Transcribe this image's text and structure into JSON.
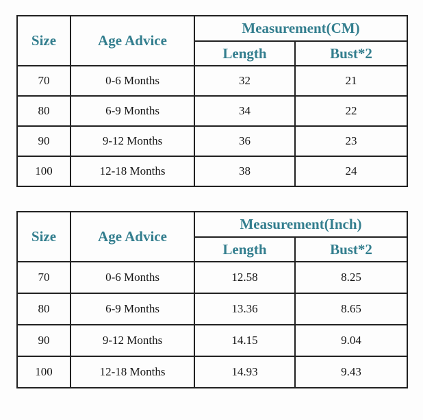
{
  "colors": {
    "header_text": "#337e8e",
    "body_text": "#161616",
    "border": "#212121",
    "background": "#fdfdfd"
  },
  "chart_data": [
    {
      "type": "table",
      "name": "size-chart-cm",
      "title": "Measurement(CM)",
      "header": {
        "size": "Size",
        "age": "Age Advice",
        "group": "Measurement(CM)",
        "length": "Length",
        "bust": "Bust*2"
      },
      "rows": [
        {
          "size": "70",
          "age": "0-6 Months",
          "length": "32",
          "bust": "21"
        },
        {
          "size": "80",
          "age": "6-9 Months",
          "length": "34",
          "bust": "22"
        },
        {
          "size": "90",
          "age": "9-12 Months",
          "length": "36",
          "bust": "23"
        },
        {
          "size": "100",
          "age": "12-18 Months",
          "length": "38",
          "bust": "24"
        }
      ]
    },
    {
      "type": "table",
      "name": "size-chart-inch",
      "title": "Measurement(Inch)",
      "header": {
        "size": "Size",
        "age": "Age Advice",
        "group": "Measurement(Inch)",
        "length": "Length",
        "bust": "Bust*2"
      },
      "rows": [
        {
          "size": "70",
          "age": "0-6 Months",
          "length": "12.58",
          "bust": "8.25"
        },
        {
          "size": "80",
          "age": "6-9 Months",
          "length": "13.36",
          "bust": "8.65"
        },
        {
          "size": "90",
          "age": "9-12 Months",
          "length": "14.15",
          "bust": "9.04"
        },
        {
          "size": "100",
          "age": "12-18 Months",
          "length": "14.93",
          "bust": "9.43"
        }
      ]
    }
  ]
}
